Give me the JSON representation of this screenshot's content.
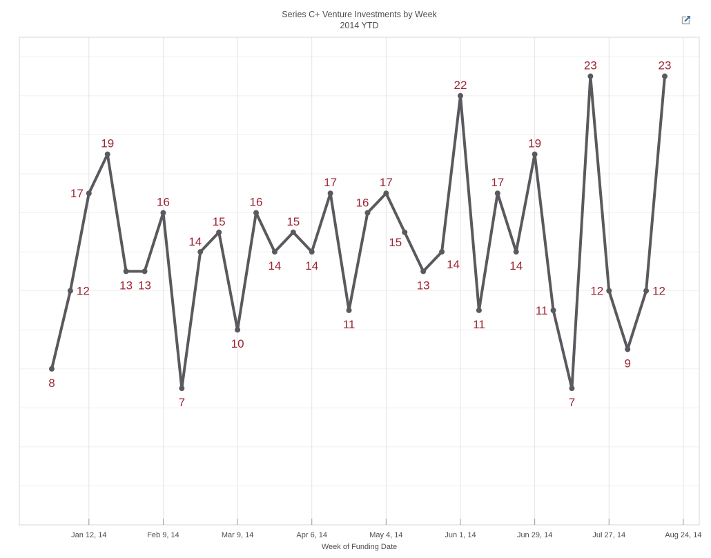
{
  "header": {
    "expand_icon": "open-in-new-window"
  },
  "chart_data": {
    "type": "line",
    "title": "Series C+ Venture Investments by Week",
    "subtitle": "2014 YTD",
    "xlabel": "Week of Funding Date",
    "ylabel": "",
    "x_tick_labels": [
      "Jan 12, 14",
      "Feb 9, 14",
      "Mar 9, 14",
      "Apr 6, 14",
      "May 4, 14",
      "Jun 1, 14",
      "Jun 29, 14",
      "Jul 27, 14",
      "Aug 24, 14"
    ],
    "x_tick_point_indices": [
      2,
      6,
      10,
      14,
      18,
      22,
      26,
      30,
      34
    ],
    "values": [
      8,
      12,
      17,
      19,
      13,
      13,
      16,
      7,
      14,
      15,
      10,
      16,
      14,
      15,
      14,
      17,
      11,
      16,
      17,
      15,
      13,
      14,
      22,
      11,
      17,
      14,
      19,
      11,
      7,
      23,
      12,
      9,
      12,
      23
    ],
    "label_placements": [
      "below",
      "right",
      "left",
      "above",
      "below",
      "below",
      "above",
      "below",
      "above-left",
      "above",
      "below",
      "above",
      "below",
      "above",
      "below",
      "above",
      "below",
      "above-left",
      "above",
      "below-left",
      "below",
      "below-right",
      "above",
      "below",
      "above",
      "below",
      "above",
      "left",
      "below",
      "above",
      "left",
      "below",
      "right",
      "above"
    ],
    "ylim": [
      0,
      25
    ],
    "grid": {
      "horizontal_step": 2,
      "vertical_at_ticks": true,
      "legend": "none"
    },
    "colors": {
      "line": "#5a5a5e",
      "marker": "#5a5a5e",
      "data_label": "#9c2433",
      "axis_text": "#4d4d4d",
      "grid_horizontal": "#efefef",
      "grid_vertical": "#e4e4e4",
      "border": "#d7d7d7",
      "tick": "#9a9a9a",
      "icon_blue": "#4c70a4",
      "icon_gray": "#a9a9a9"
    }
  }
}
